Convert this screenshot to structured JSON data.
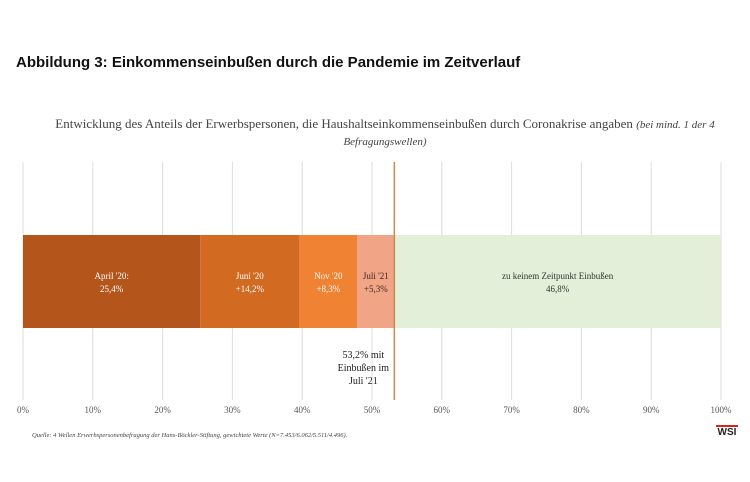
{
  "figure_title": "Abbildung 3: Einkommenseinbußen durch die Pandemie im Zeitverlauf",
  "source": "Quelle: 4 Wellen Erwerbspersonenbefragung der Hans-Böckler-Stiftung, gewichtete Werte (N=7.453/6.062/5.511/4.496).",
  "logo_text": "WSI",
  "chart_data": {
    "type": "bar",
    "orientation": "horizontal-stacked",
    "title": "Entwicklung des Anteils der Erwerbspersonen, die Haushaltseinkommenseinbußen durch Coronakrise angaben",
    "subtitle": "(bei mind. 1 der 4 Befragungswellen)",
    "xlim": [
      0,
      100
    ],
    "ticks": [
      "0%",
      "10%",
      "20%",
      "30%",
      "40%",
      "50%",
      "60%",
      "70%",
      "80%",
      "90%",
      "100%"
    ],
    "grid": true,
    "segments": [
      {
        "label": "April '20:",
        "value_label": "25,4%",
        "value": 25.4,
        "color": "#b4561c",
        "text_color": "#ffffff"
      },
      {
        "label": "Juni '20",
        "value_label": "+14,2%",
        "value": 14.2,
        "color": "#d26a22",
        "text_color": "#ffffff"
      },
      {
        "label": "Nov '20",
        "value_label": "+8,3%",
        "value": 8.3,
        "color": "#ef8233",
        "text_color": "#ffffff"
      },
      {
        "label": "Juli '21",
        "value_label": "+5,3%",
        "value": 5.3,
        "color": "#f2a487",
        "text_color": "#3a2a20"
      },
      {
        "label": "zu keinem Zeitpunkt Einbußen",
        "value_label": "46,8%",
        "value": 46.8,
        "color": "#e3efd9",
        "text_color": "#333333"
      }
    ],
    "reference_line": {
      "value": 53.2,
      "color": "#c98a4a",
      "annotation": [
        "53,2% mit",
        "Einbußen im",
        "Juli '21"
      ]
    }
  }
}
